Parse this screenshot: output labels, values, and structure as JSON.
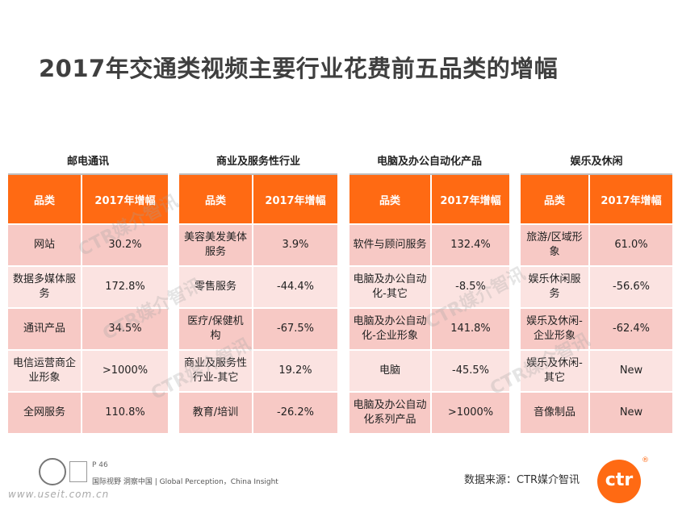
{
  "title": "2017年交通类视频主要行业花费前五品类的增幅",
  "header_col1": "品类",
  "header_col2": "2017年增幅",
  "panels": [
    {
      "category": "邮电通讯",
      "rows": [
        {
          "item": "网站",
          "value": "30.2%"
        },
        {
          "item": "数据多媒体服务",
          "value": "172.8%"
        },
        {
          "item": "通讯产品",
          "value": "34.5%"
        },
        {
          "item": "电信运营商企业形象",
          "value": ">1000%"
        },
        {
          "item": "全网服务",
          "value": "110.8%"
        }
      ]
    },
    {
      "category": "商业及服务性行业",
      "rows": [
        {
          "item": "美容美发美体服务",
          "value": "3.9%"
        },
        {
          "item": "零售服务",
          "value": "-44.4%"
        },
        {
          "item": "医疗/保健机构",
          "value": "-67.5%"
        },
        {
          "item": "商业及服务性行业-其它",
          "value": "19.2%"
        },
        {
          "item": "教育/培训",
          "value": "-26.2%"
        }
      ]
    },
    {
      "category": "电脑及办公自动化产品",
      "rows": [
        {
          "item": "软件与顾问服务",
          "value": "132.4%"
        },
        {
          "item": "电脑及办公自动化-其它",
          "value": "-8.5%"
        },
        {
          "item": "电脑及办公自动化-企业形象",
          "value": "141.8%"
        },
        {
          "item": "电脑",
          "value": "-45.5%"
        },
        {
          "item": "电脑及办公自动化系列产品",
          "value": ">1000%"
        }
      ]
    },
    {
      "category": "娱乐及休闲",
      "rows": [
        {
          "item": "旅游/区域形象",
          "value": "61.0%"
        },
        {
          "item": "娱乐休闲服务",
          "value": "-56.6%"
        },
        {
          "item": "娱乐及休闲-企业形象",
          "value": "-62.4%"
        },
        {
          "item": "娱乐及休闲-其它",
          "value": "New"
        },
        {
          "item": "音像制品",
          "value": "New"
        }
      ]
    }
  ],
  "footer": {
    "page": "P 46",
    "tagline": "国际视野  洞察中国 | Global Perception，China Insight",
    "url": "www.useit.com.cn",
    "source": "数据来源：CTR媒介智讯",
    "logo_text": "ctr",
    "logo_mark": "®",
    "watermark": "CTR媒介智讯"
  },
  "colors": {
    "header": "#ff6a13",
    "row_odd": "#f7c9c5",
    "row_even": "#fbe3e1"
  }
}
